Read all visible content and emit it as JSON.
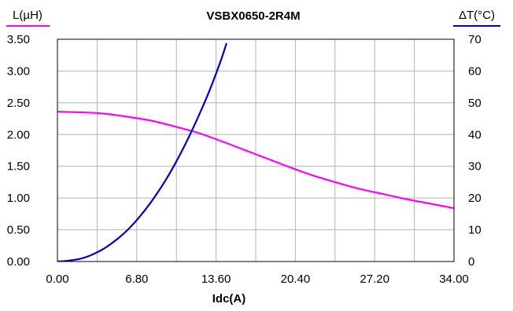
{
  "chart_data": {
    "type": "line",
    "title": "VSBX0650-2R4M",
    "xlabel": "Idc(A)",
    "ylabel_left": "L(µH)",
    "ylabel_right": "ΔT(°C)",
    "xlim": [
      0,
      34
    ],
    "ylim_left": [
      0,
      3.5
    ],
    "ylim_right": [
      0,
      70
    ],
    "grid": true,
    "x_ticks": [
      "0.00",
      "6.80",
      "13.60",
      "20.40",
      "27.20",
      "34.00"
    ],
    "y_left_ticks": [
      "0.00",
      "0.50",
      "1.00",
      "1.50",
      "2.00",
      "2.50",
      "3.00",
      "3.50"
    ],
    "y_right_ticks": [
      "0",
      "10",
      "20",
      "30",
      "40",
      "50",
      "60",
      "70"
    ],
    "series": [
      {
        "name": "L(µH)",
        "axis": "left",
        "color": "#ff00ff",
        "x": [
          0,
          2,
          4,
          6,
          8,
          10,
          12,
          14,
          16,
          18,
          20,
          22,
          24,
          26,
          28,
          30,
          32,
          34
        ],
        "y": [
          2.36,
          2.35,
          2.33,
          2.28,
          2.22,
          2.13,
          2.03,
          1.9,
          1.76,
          1.62,
          1.48,
          1.35,
          1.24,
          1.14,
          1.06,
          0.98,
          0.91,
          0.84
        ]
      },
      {
        "name": "ΔT(°C)",
        "axis": "right",
        "color": "#0000cc",
        "x": [
          0,
          1,
          2,
          3,
          4,
          5,
          6,
          7,
          8,
          9,
          10,
          11,
          12,
          13,
          14,
          14.5
        ],
        "y": [
          0,
          0.3,
          0.9,
          2.2,
          4.1,
          6.7,
          9.9,
          13.9,
          18.6,
          24,
          30.2,
          37.2,
          45,
          53.5,
          63.2,
          68.8
        ]
      }
    ]
  }
}
